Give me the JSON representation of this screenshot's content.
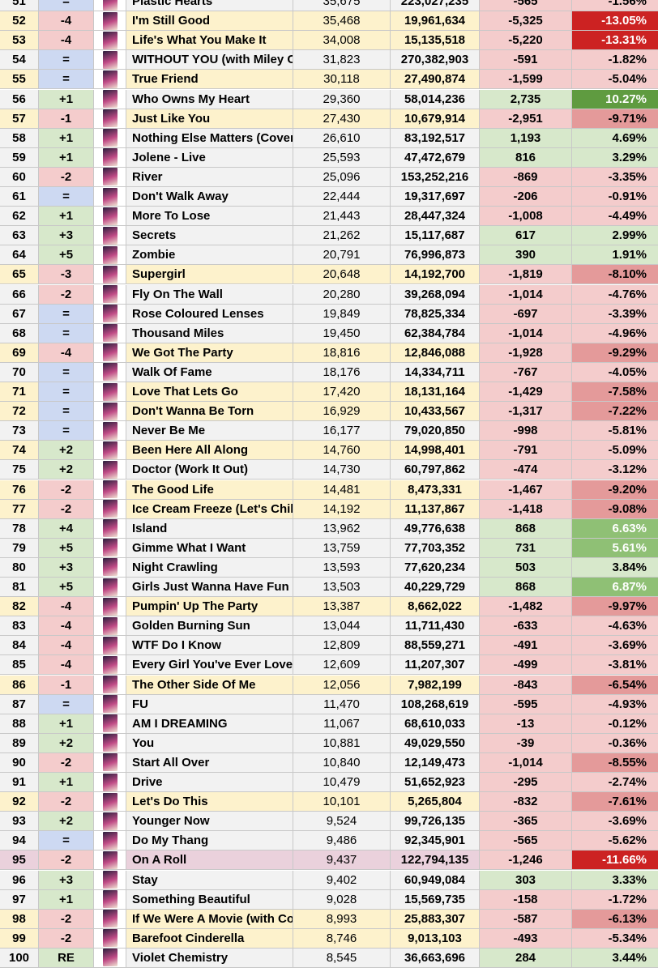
{
  "colors": {
    "row_default": "#f2f2f2",
    "row_highlight": "#fdf2cc",
    "row_pink": "#ead1dc",
    "change_same": "#cdd9f2",
    "change_up": "#d7e8cb",
    "change_down": "#f4cccc",
    "diff_pos": "#d7e8cb",
    "diff_neg": "#f4cccc",
    "pct_pos_light": "#d7e8cb",
    "pct_pos_mid": "#8fc075",
    "pct_pos_strong": "#5f9b40",
    "pct_neg_light": "#f4cccc",
    "pct_neg_mid": "#e49a9a",
    "pct_neg_strong": "#cc2222"
  },
  "rows": [
    {
      "rank": "51",
      "change": "=",
      "title": "Plastic Hearts",
      "daily": "35,675",
      "total": "223,027,235",
      "diff": "-565",
      "pct": "-1.56%",
      "row_style": "default"
    },
    {
      "rank": "52",
      "change": "-4",
      "title": "I'm Still Good",
      "daily": "35,468",
      "total": "19,961,634",
      "diff": "-5,325",
      "pct": "-13.05%",
      "row_style": "highlight"
    },
    {
      "rank": "53",
      "change": "-4",
      "title": "Life's What You Make It",
      "daily": "34,008",
      "total": "15,135,518",
      "diff": "-5,220",
      "pct": "-13.31%",
      "row_style": "highlight"
    },
    {
      "rank": "54",
      "change": "=",
      "title": "WITHOUT YOU (with Miley C",
      "daily": "31,823",
      "total": "270,382,903",
      "diff": "-591",
      "pct": "-1.82%",
      "row_style": "default"
    },
    {
      "rank": "55",
      "change": "=",
      "title": "True Friend",
      "daily": "30,118",
      "total": "27,490,874",
      "diff": "-1,599",
      "pct": "-5.04%",
      "row_style": "highlight"
    },
    {
      "rank": "56",
      "change": "+1",
      "title": "Who Owns My Heart",
      "daily": "29,360",
      "total": "58,014,236",
      "diff": "2,735",
      "pct": "10.27%",
      "row_style": "default"
    },
    {
      "rank": "57",
      "change": "-1",
      "title": "Just Like You",
      "daily": "27,430",
      "total": "10,679,914",
      "diff": "-2,951",
      "pct": "-9.71%",
      "row_style": "highlight"
    },
    {
      "rank": "58",
      "change": "+1",
      "title": "Nothing Else Matters (Cover",
      "daily": "26,610",
      "total": "83,192,517",
      "diff": "1,193",
      "pct": "4.69%",
      "row_style": "default"
    },
    {
      "rank": "59",
      "change": "+1",
      "title": "Jolene - Live",
      "daily": "25,593",
      "total": "47,472,679",
      "diff": "816",
      "pct": "3.29%",
      "row_style": "default"
    },
    {
      "rank": "60",
      "change": "-2",
      "title": "River",
      "daily": "25,096",
      "total": "153,252,216",
      "diff": "-869",
      "pct": "-3.35%",
      "row_style": "default"
    },
    {
      "rank": "61",
      "change": "=",
      "title": "Don't Walk Away",
      "daily": "22,444",
      "total": "19,317,697",
      "diff": "-206",
      "pct": "-0.91%",
      "row_style": "default"
    },
    {
      "rank": "62",
      "change": "+1",
      "title": "More To Lose",
      "daily": "21,443",
      "total": "28,447,324",
      "diff": "-1,008",
      "pct": "-4.49%",
      "row_style": "default"
    },
    {
      "rank": "63",
      "change": "+3",
      "title": "Secrets",
      "daily": "21,262",
      "total": "15,117,687",
      "diff": "617",
      "pct": "2.99%",
      "row_style": "default"
    },
    {
      "rank": "64",
      "change": "+5",
      "title": "Zombie",
      "daily": "20,791",
      "total": "76,996,873",
      "diff": "390",
      "pct": "1.91%",
      "row_style": "default"
    },
    {
      "rank": "65",
      "change": "-3",
      "title": "Supergirl",
      "daily": "20,648",
      "total": "14,192,700",
      "diff": "-1,819",
      "pct": "-8.10%",
      "row_style": "highlight"
    },
    {
      "rank": "66",
      "change": "-2",
      "title": "Fly On The Wall",
      "daily": "20,280",
      "total": "39,268,094",
      "diff": "-1,014",
      "pct": "-4.76%",
      "row_style": "default"
    },
    {
      "rank": "67",
      "change": "=",
      "title": "Rose Coloured Lenses",
      "daily": "19,849",
      "total": "78,825,334",
      "diff": "-697",
      "pct": "-3.39%",
      "row_style": "default"
    },
    {
      "rank": "68",
      "change": "=",
      "title": "Thousand Miles",
      "daily": "19,450",
      "total": "62,384,784",
      "diff": "-1,014",
      "pct": "-4.96%",
      "row_style": "default"
    },
    {
      "rank": "69",
      "change": "-4",
      "title": "We Got The Party",
      "daily": "18,816",
      "total": "12,846,088",
      "diff": "-1,928",
      "pct": "-9.29%",
      "row_style": "highlight"
    },
    {
      "rank": "70",
      "change": "=",
      "title": "Walk Of Fame",
      "daily": "18,176",
      "total": "14,334,711",
      "diff": "-767",
      "pct": "-4.05%",
      "row_style": "default"
    },
    {
      "rank": "71",
      "change": "=",
      "title": "Love That Lets Go",
      "daily": "17,420",
      "total": "18,131,164",
      "diff": "-1,429",
      "pct": "-7.58%",
      "row_style": "highlight"
    },
    {
      "rank": "72",
      "change": "=",
      "title": "Don't Wanna Be Torn",
      "daily": "16,929",
      "total": "10,433,567",
      "diff": "-1,317",
      "pct": "-7.22%",
      "row_style": "highlight"
    },
    {
      "rank": "73",
      "change": "=",
      "title": "Never Be Me",
      "daily": "16,177",
      "total": "79,020,850",
      "diff": "-998",
      "pct": "-5.81%",
      "row_style": "default"
    },
    {
      "rank": "74",
      "change": "+2",
      "title": "Been Here All Along",
      "daily": "14,760",
      "total": "14,998,401",
      "diff": "-791",
      "pct": "-5.09%",
      "row_style": "highlight"
    },
    {
      "rank": "75",
      "change": "+2",
      "title": "Doctor (Work It Out)",
      "daily": "14,730",
      "total": "60,797,862",
      "diff": "-474",
      "pct": "-3.12%",
      "row_style": "default"
    },
    {
      "rank": "76",
      "change": "-2",
      "title": "The Good Life",
      "daily": "14,481",
      "total": "8,473,331",
      "diff": "-1,467",
      "pct": "-9.20%",
      "row_style": "highlight"
    },
    {
      "rank": "77",
      "change": "-2",
      "title": "Ice Cream Freeze (Let's Chil",
      "daily": "14,192",
      "total": "11,137,867",
      "diff": "-1,418",
      "pct": "-9.08%",
      "row_style": "highlight"
    },
    {
      "rank": "78",
      "change": "+4",
      "title": "Island",
      "daily": "13,962",
      "total": "49,776,638",
      "diff": "868",
      "pct": "6.63%",
      "row_style": "default"
    },
    {
      "rank": "79",
      "change": "+5",
      "title": "Gimme What I Want",
      "daily": "13,759",
      "total": "77,703,352",
      "diff": "731",
      "pct": "5.61%",
      "row_style": "default"
    },
    {
      "rank": "80",
      "change": "+3",
      "title": "Night Crawling",
      "daily": "13,593",
      "total": "77,620,234",
      "diff": "503",
      "pct": "3.84%",
      "row_style": "default"
    },
    {
      "rank": "81",
      "change": "+5",
      "title": "Girls Just Wanna Have Fun",
      "daily": "13,503",
      "total": "40,229,729",
      "diff": "868",
      "pct": "6.87%",
      "row_style": "default"
    },
    {
      "rank": "82",
      "change": "-4",
      "title": "Pumpin' Up The Party",
      "daily": "13,387",
      "total": "8,662,022",
      "diff": "-1,482",
      "pct": "-9.97%",
      "row_style": "highlight"
    },
    {
      "rank": "83",
      "change": "-4",
      "title": "Golden Burning Sun",
      "daily": "13,044",
      "total": "11,711,430",
      "diff": "-633",
      "pct": "-4.63%",
      "row_style": "default"
    },
    {
      "rank": "84",
      "change": "-4",
      "title": "WTF Do I Know",
      "daily": "12,809",
      "total": "88,559,271",
      "diff": "-491",
      "pct": "-3.69%",
      "row_style": "default"
    },
    {
      "rank": "85",
      "change": "-4",
      "title": "Every Girl You've Ever Love",
      "daily": "12,609",
      "total": "11,207,307",
      "diff": "-499",
      "pct": "-3.81%",
      "row_style": "default"
    },
    {
      "rank": "86",
      "change": "-1",
      "title": "The Other Side Of Me",
      "daily": "12,056",
      "total": "7,982,199",
      "diff": "-843",
      "pct": "-6.54%",
      "row_style": "highlight"
    },
    {
      "rank": "87",
      "change": "=",
      "title": "FU",
      "daily": "11,470",
      "total": "108,268,619",
      "diff": "-595",
      "pct": "-4.93%",
      "row_style": "default"
    },
    {
      "rank": "88",
      "change": "+1",
      "title": "AM I DREAMING",
      "daily": "11,067",
      "total": "68,610,033",
      "diff": "-13",
      "pct": "-0.12%",
      "row_style": "default"
    },
    {
      "rank": "89",
      "change": "+2",
      "title": "You",
      "daily": "10,881",
      "total": "49,029,550",
      "diff": "-39",
      "pct": "-0.36%",
      "row_style": "default"
    },
    {
      "rank": "90",
      "change": "-2",
      "title": "Start All Over",
      "daily": "10,840",
      "total": "12,149,473",
      "diff": "-1,014",
      "pct": "-8.55%",
      "row_style": "default"
    },
    {
      "rank": "91",
      "change": "+1",
      "title": "Drive",
      "daily": "10,479",
      "total": "51,652,923",
      "diff": "-295",
      "pct": "-2.74%",
      "row_style": "default"
    },
    {
      "rank": "92",
      "change": "-2",
      "title": "Let's Do This",
      "daily": "10,101",
      "total": "5,265,804",
      "diff": "-832",
      "pct": "-7.61%",
      "row_style": "highlight"
    },
    {
      "rank": "93",
      "change": "+2",
      "title": "Younger Now",
      "daily": "9,524",
      "total": "99,726,135",
      "diff": "-365",
      "pct": "-3.69%",
      "row_style": "default"
    },
    {
      "rank": "94",
      "change": "=",
      "title": "Do My Thang",
      "daily": "9,486",
      "total": "92,345,901",
      "diff": "-565",
      "pct": "-5.62%",
      "row_style": "default"
    },
    {
      "rank": "95",
      "change": "-2",
      "title": "On A Roll",
      "daily": "9,437",
      "total": "122,794,135",
      "diff": "-1,246",
      "pct": "-11.66%",
      "row_style": "pink"
    },
    {
      "rank": "96",
      "change": "+3",
      "title": "Stay",
      "daily": "9,402",
      "total": "60,949,084",
      "diff": "303",
      "pct": "3.33%",
      "row_style": "default"
    },
    {
      "rank": "97",
      "change": "+1",
      "title": "Something Beautiful",
      "daily": "9,028",
      "total": "15,569,735",
      "diff": "-158",
      "pct": "-1.72%",
      "row_style": "default"
    },
    {
      "rank": "98",
      "change": "-2",
      "title": "If We Were A Movie (with Co",
      "daily": "8,993",
      "total": "25,883,307",
      "diff": "-587",
      "pct": "-6.13%",
      "row_style": "highlight"
    },
    {
      "rank": "99",
      "change": "-2",
      "title": "Barefoot Cinderella",
      "daily": "8,746",
      "total": "9,013,103",
      "diff": "-493",
      "pct": "-5.34%",
      "row_style": "highlight"
    },
    {
      "rank": "100",
      "change": "RE",
      "title": "Violet Chemistry",
      "daily": "8,545",
      "total": "36,663,696",
      "diff": "284",
      "pct": "3.44%",
      "row_style": "default"
    }
  ]
}
